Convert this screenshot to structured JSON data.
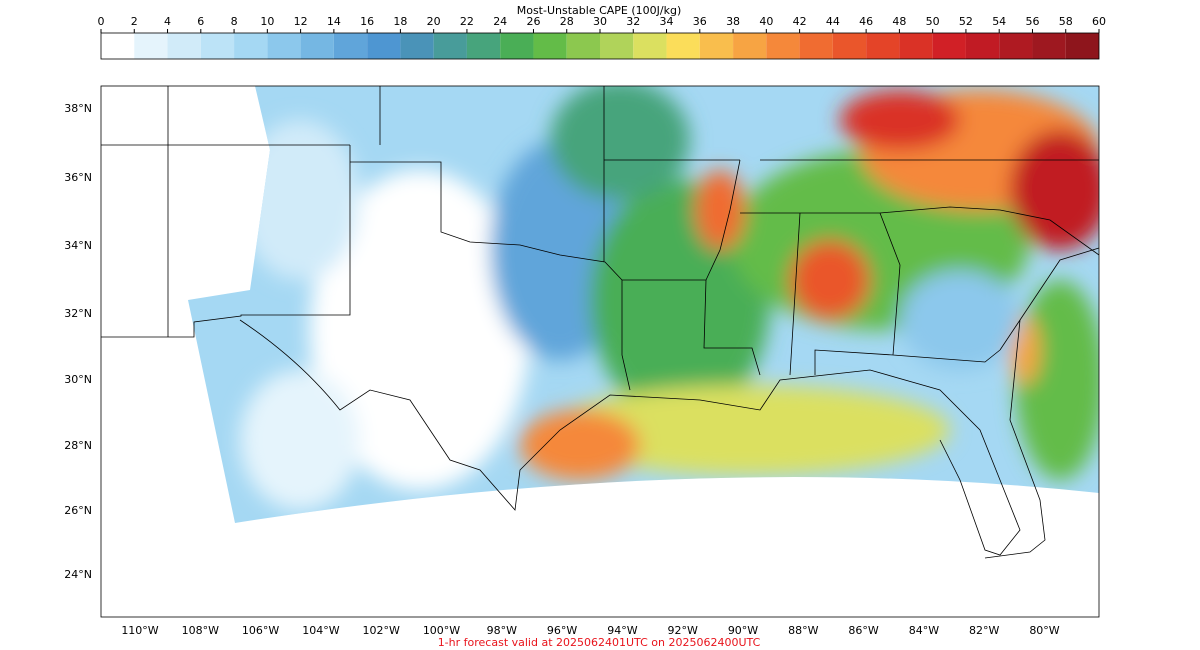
{
  "colorbar": {
    "title": "Most-Unstable CAPE (100J/kg)",
    "ticks": [
      0,
      2,
      4,
      6,
      8,
      10,
      12,
      14,
      16,
      18,
      20,
      22,
      24,
      26,
      28,
      30,
      32,
      34,
      36,
      38,
      40,
      42,
      44,
      46,
      48,
      50,
      52,
      54,
      56,
      58,
      60
    ],
    "colors": [
      "#ffffff",
      "#e5f4fc",
      "#d1ebf9",
      "#bce3f7",
      "#a5d8f3",
      "#8cc8ec",
      "#75b7e3",
      "#60a5da",
      "#4e96d2",
      "#4a93b8",
      "#489c9a",
      "#47a47c",
      "#4aae56",
      "#63bc48",
      "#8cc84f",
      "#b0d35a",
      "#dbe060",
      "#fbdd5a",
      "#f9be4d",
      "#f7a443",
      "#f5883a",
      "#f06c31",
      "#ea562b",
      "#e44428",
      "#da3226",
      "#d12026",
      "#c11b24",
      "#af1a22",
      "#9e1820",
      "#8e151c"
    ]
  },
  "map": {
    "lat_labels": [
      "38°N",
      "36°N",
      "34°N",
      "32°N",
      "30°N",
      "28°N",
      "26°N",
      "24°N"
    ],
    "lon_labels": [
      "110°W",
      "108°W",
      "106°W",
      "104°W",
      "102°W",
      "100°W",
      "98°W",
      "96°W",
      "94°W",
      "92°W",
      "90°W",
      "88°W",
      "86°W",
      "84°W",
      "82°W",
      "80°W"
    ]
  },
  "footer": "1-hr forecast valid at 2025062401UTC on 2025062400UTC"
}
